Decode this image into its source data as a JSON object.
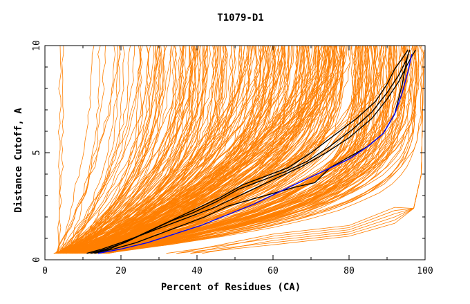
{
  "chart_data": {
    "type": "line",
    "title": "T1079-D1",
    "xlabel": "Percent of Residues (CA)",
    "ylabel": "Distance Cutoff, A",
    "xlim": [
      0,
      100
    ],
    "ylim": [
      0,
      10
    ],
    "xticks": [
      "0",
      "20",
      "40",
      "60",
      "80",
      "100"
    ],
    "yticks": [
      "0",
      "5",
      "10"
    ],
    "grid": false,
    "legend": "none",
    "colors": {
      "models": "#ff7f00",
      "highlight": "#000000",
      "reference": "#0000ff",
      "axis": "#000000"
    },
    "series": [
      {
        "color": "#000000",
        "x": [
          11,
          15,
          20,
          26,
          32,
          38,
          44,
          50,
          56,
          62,
          68,
          74,
          80,
          86,
          90,
          93,
          95,
          96.5,
          97.5
        ],
        "y": [
          0.3,
          0.5,
          0.8,
          1.2,
          1.6,
          2.0,
          2.4,
          2.9,
          3.4,
          3.9,
          4.4,
          5.0,
          5.7,
          6.6,
          7.5,
          8.3,
          9.0,
          9.5,
          9.8
        ]
      },
      {
        "color": "#000000",
        "x": [
          12,
          16,
          21,
          27,
          33,
          39,
          45,
          51,
          57,
          63,
          69,
          75,
          81,
          86,
          90,
          93,
          95,
          96
        ],
        "y": [
          0.3,
          0.5,
          0.8,
          1.3,
          1.8,
          2.2,
          2.7,
          3.3,
          3.7,
          4.1,
          4.6,
          5.3,
          6.1,
          6.9,
          7.8,
          8.6,
          9.3,
          9.8
        ]
      },
      {
        "color": "#000000",
        "x": [
          12,
          17,
          22,
          28,
          34,
          40,
          46,
          52,
          58,
          64,
          70,
          76,
          82,
          87,
          90,
          92,
          94,
          95.5
        ],
        "y": [
          0.3,
          0.5,
          0.9,
          1.4,
          1.9,
          2.4,
          2.9,
          3.5,
          3.9,
          4.3,
          5.0,
          5.8,
          6.6,
          7.4,
          8.2,
          8.9,
          9.4,
          9.8
        ]
      },
      {
        "color": "#000000",
        "x": [
          13,
          18,
          24,
          30,
          36,
          42,
          48,
          54,
          60,
          66,
          71,
          75,
          80,
          85,
          89,
          92,
          94,
          95.5
        ],
        "y": [
          0.3,
          0.5,
          0.8,
          1.2,
          1.6,
          2.0,
          2.5,
          2.8,
          3.1,
          3.4,
          3.6,
          4.3,
          4.8,
          5.3,
          5.9,
          6.8,
          8.2,
          9.6
        ]
      },
      {
        "color": "#0000ff",
        "x": [
          14,
          20,
          27,
          34,
          41,
          48,
          55,
          62,
          68,
          74,
          80,
          85,
          89,
          92,
          94,
          95.5,
          96.5
        ],
        "y": [
          0.3,
          0.5,
          0.8,
          1.2,
          1.6,
          2.1,
          2.6,
          3.2,
          3.7,
          4.2,
          4.7,
          5.3,
          5.9,
          6.8,
          7.8,
          8.8,
          9.6
        ]
      }
    ],
    "model_band_note": "Several hundred orange model curves (GDT distance-cutoff vs percent residues) spanning from steep curves near x=3-40 to curves reaching x~95-100 at cutoff 10"
  }
}
